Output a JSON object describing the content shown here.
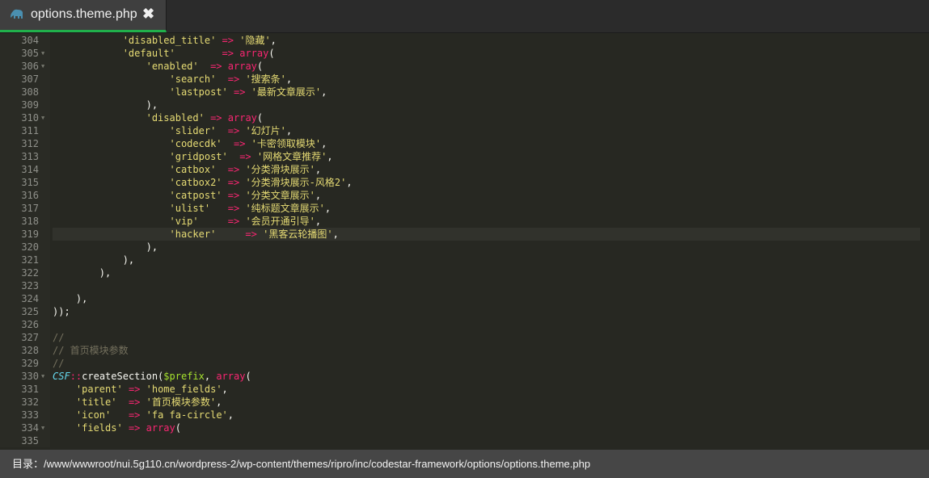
{
  "tab": {
    "title": "options.theme.php",
    "close": "✖",
    "icon": "php-elephant-icon",
    "accent": "#21b04b"
  },
  "status": {
    "label": "目录：",
    "path": "/www/wwwroot/nui.5g110.cn/wordpress-2/wp-content/themes/ripro/inc/codestar-framework/options/options.theme.php"
  },
  "editor": {
    "current_line": 319,
    "lines": [
      {
        "n": "304",
        "fold": false,
        "t": [
          [
            "p",
            "            "
          ],
          [
            "s",
            "'disabled_title'"
          ],
          [
            "p",
            " "
          ],
          [
            "o",
            "=>"
          ],
          [
            "p",
            " "
          ],
          [
            "s",
            "'隐藏'"
          ],
          [
            "p",
            ","
          ]
        ]
      },
      {
        "n": "305",
        "fold": true,
        "t": [
          [
            "p",
            "            "
          ],
          [
            "s",
            "'default'"
          ],
          [
            "p",
            "        "
          ],
          [
            "o",
            "=>"
          ],
          [
            "p",
            " "
          ],
          [
            "k",
            "array"
          ],
          [
            "p",
            "("
          ]
        ]
      },
      {
        "n": "306",
        "fold": true,
        "t": [
          [
            "p",
            "                "
          ],
          [
            "s",
            "'enabled'"
          ],
          [
            "p",
            "  "
          ],
          [
            "o",
            "=>"
          ],
          [
            "p",
            " "
          ],
          [
            "k",
            "array"
          ],
          [
            "p",
            "("
          ]
        ]
      },
      {
        "n": "307",
        "fold": false,
        "t": [
          [
            "p",
            "                    "
          ],
          [
            "s",
            "'search'"
          ],
          [
            "p",
            "  "
          ],
          [
            "o",
            "=>"
          ],
          [
            "p",
            " "
          ],
          [
            "s",
            "'搜索条'"
          ],
          [
            "p",
            ","
          ]
        ]
      },
      {
        "n": "308",
        "fold": false,
        "t": [
          [
            "p",
            "                    "
          ],
          [
            "s",
            "'lastpost'"
          ],
          [
            "p",
            " "
          ],
          [
            "o",
            "=>"
          ],
          [
            "p",
            " "
          ],
          [
            "s",
            "'最新文章展示'"
          ],
          [
            "p",
            ","
          ]
        ]
      },
      {
        "n": "309",
        "fold": false,
        "t": [
          [
            "p",
            "                "
          ],
          [
            "p",
            "),"
          ]
        ]
      },
      {
        "n": "310",
        "fold": true,
        "t": [
          [
            "p",
            "                "
          ],
          [
            "s",
            "'disabled'"
          ],
          [
            "p",
            " "
          ],
          [
            "o",
            "=>"
          ],
          [
            "p",
            " "
          ],
          [
            "k",
            "array"
          ],
          [
            "p",
            "("
          ]
        ]
      },
      {
        "n": "311",
        "fold": false,
        "t": [
          [
            "p",
            "                    "
          ],
          [
            "s",
            "'slider'"
          ],
          [
            "p",
            "  "
          ],
          [
            "o",
            "=>"
          ],
          [
            "p",
            " "
          ],
          [
            "s",
            "'幻灯片'"
          ],
          [
            "p",
            ","
          ]
        ]
      },
      {
        "n": "312",
        "fold": false,
        "t": [
          [
            "p",
            "                    "
          ],
          [
            "s",
            "'codecdk'"
          ],
          [
            "p",
            "  "
          ],
          [
            "o",
            "=>"
          ],
          [
            "p",
            " "
          ],
          [
            "s",
            "'卡密领取模块'"
          ],
          [
            "p",
            ","
          ]
        ]
      },
      {
        "n": "313",
        "fold": false,
        "t": [
          [
            "p",
            "                    "
          ],
          [
            "s",
            "'gridpost'"
          ],
          [
            "p",
            "  "
          ],
          [
            "o",
            "=>"
          ],
          [
            "p",
            " "
          ],
          [
            "s",
            "'网格文章推荐'"
          ],
          [
            "p",
            ","
          ]
        ]
      },
      {
        "n": "314",
        "fold": false,
        "t": [
          [
            "p",
            "                    "
          ],
          [
            "s",
            "'catbox'"
          ],
          [
            "p",
            "  "
          ],
          [
            "o",
            "=>"
          ],
          [
            "p",
            " "
          ],
          [
            "s",
            "'分类滑块展示'"
          ],
          [
            "p",
            ","
          ]
        ]
      },
      {
        "n": "315",
        "fold": false,
        "t": [
          [
            "p",
            "                    "
          ],
          [
            "s",
            "'catbox2'"
          ],
          [
            "p",
            " "
          ],
          [
            "o",
            "=>"
          ],
          [
            "p",
            " "
          ],
          [
            "s",
            "'分类滑块展示-风格2'"
          ],
          [
            "p",
            ","
          ]
        ]
      },
      {
        "n": "316",
        "fold": false,
        "t": [
          [
            "p",
            "                    "
          ],
          [
            "s",
            "'catpost'"
          ],
          [
            "p",
            " "
          ],
          [
            "o",
            "=>"
          ],
          [
            "p",
            " "
          ],
          [
            "s",
            "'分类文章展示'"
          ],
          [
            "p",
            ","
          ]
        ]
      },
      {
        "n": "317",
        "fold": false,
        "t": [
          [
            "p",
            "                    "
          ],
          [
            "s",
            "'ulist'"
          ],
          [
            "p",
            "   "
          ],
          [
            "o",
            "=>"
          ],
          [
            "p",
            " "
          ],
          [
            "s",
            "'纯标题文章展示'"
          ],
          [
            "p",
            ","
          ]
        ]
      },
      {
        "n": "318",
        "fold": false,
        "t": [
          [
            "p",
            "                    "
          ],
          [
            "s",
            "'vip'"
          ],
          [
            "p",
            "     "
          ],
          [
            "o",
            "=>"
          ],
          [
            "p",
            " "
          ],
          [
            "s",
            "'会员开通引导'"
          ],
          [
            "p",
            ","
          ]
        ]
      },
      {
        "n": "319",
        "fold": false,
        "t": [
          [
            "p",
            "                    "
          ],
          [
            "s",
            "'hacker'"
          ],
          [
            "p",
            "     "
          ],
          [
            "o",
            "=>"
          ],
          [
            "p",
            " "
          ],
          [
            "s",
            "'黑客云轮播图'"
          ],
          [
            "p",
            ","
          ]
        ]
      },
      {
        "n": "320",
        "fold": false,
        "t": [
          [
            "p",
            "                "
          ],
          [
            "p",
            "),"
          ]
        ]
      },
      {
        "n": "321",
        "fold": false,
        "t": [
          [
            "p",
            "            "
          ],
          [
            "p",
            "),"
          ]
        ]
      },
      {
        "n": "322",
        "fold": false,
        "t": [
          [
            "p",
            "        "
          ],
          [
            "p",
            "),"
          ]
        ]
      },
      {
        "n": "323",
        "fold": false,
        "t": []
      },
      {
        "n": "324",
        "fold": false,
        "t": [
          [
            "p",
            "    "
          ],
          [
            "p",
            "),"
          ]
        ]
      },
      {
        "n": "325",
        "fold": false,
        "t": [
          [
            "p",
            "));"
          ]
        ]
      },
      {
        "n": "326",
        "fold": false,
        "t": []
      },
      {
        "n": "327",
        "fold": false,
        "t": [
          [
            "c",
            "//"
          ]
        ]
      },
      {
        "n": "328",
        "fold": false,
        "t": [
          [
            "c",
            "// 首页模块参数"
          ]
        ]
      },
      {
        "n": "329",
        "fold": false,
        "t": [
          [
            "c",
            "//"
          ]
        ]
      },
      {
        "n": "330",
        "fold": true,
        "t": [
          [
            "t",
            "CSF"
          ],
          [
            "o",
            "::"
          ],
          [
            "p",
            "createSection("
          ],
          [
            "v",
            "$prefix"
          ],
          [
            "p",
            ", "
          ],
          [
            "k",
            "array"
          ],
          [
            "p",
            "("
          ]
        ]
      },
      {
        "n": "331",
        "fold": false,
        "t": [
          [
            "p",
            "    "
          ],
          [
            "s",
            "'parent'"
          ],
          [
            "p",
            " "
          ],
          [
            "o",
            "=>"
          ],
          [
            "p",
            " "
          ],
          [
            "s",
            "'home_fields'"
          ],
          [
            "p",
            ","
          ]
        ]
      },
      {
        "n": "332",
        "fold": false,
        "t": [
          [
            "p",
            "    "
          ],
          [
            "s",
            "'title'"
          ],
          [
            "p",
            "  "
          ],
          [
            "o",
            "=>"
          ],
          [
            "p",
            " "
          ],
          [
            "s",
            "'首页模块参数'"
          ],
          [
            "p",
            ","
          ]
        ]
      },
      {
        "n": "333",
        "fold": false,
        "t": [
          [
            "p",
            "    "
          ],
          [
            "s",
            "'icon'"
          ],
          [
            "p",
            "   "
          ],
          [
            "o",
            "=>"
          ],
          [
            "p",
            " "
          ],
          [
            "s",
            "'fa fa-circle'"
          ],
          [
            "p",
            ","
          ]
        ]
      },
      {
        "n": "334",
        "fold": true,
        "t": [
          [
            "p",
            "    "
          ],
          [
            "s",
            "'fields'"
          ],
          [
            "p",
            " "
          ],
          [
            "o",
            "=>"
          ],
          [
            "p",
            " "
          ],
          [
            "k",
            "array"
          ],
          [
            "p",
            "("
          ]
        ]
      },
      {
        "n": "335",
        "fold": false,
        "t": []
      }
    ]
  }
}
